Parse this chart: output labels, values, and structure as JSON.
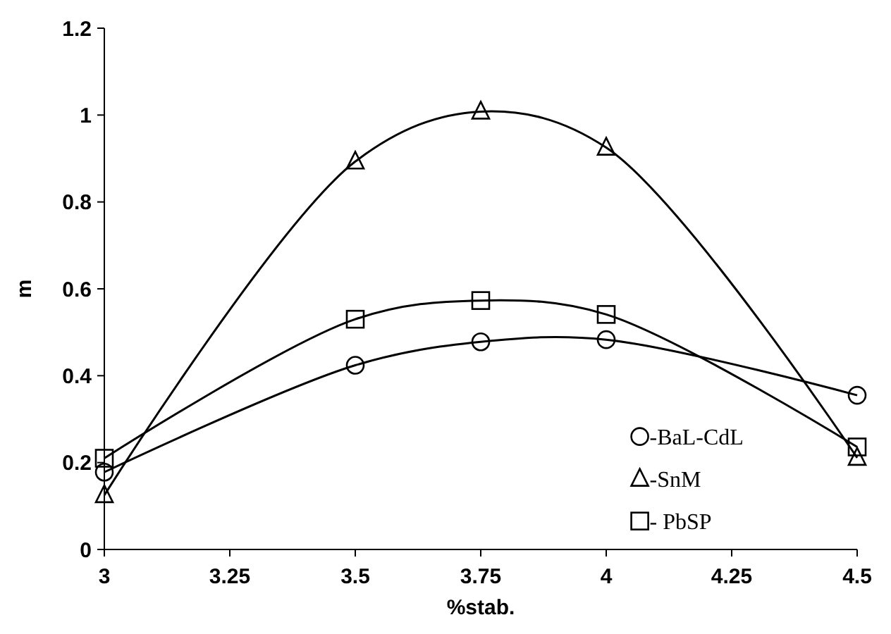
{
  "chart_data": {
    "type": "line",
    "xlabel": "%stab.",
    "ylabel": "m",
    "x": [
      3,
      3.5,
      3.75,
      4,
      4.5
    ],
    "xlim": [
      3,
      4.5
    ],
    "xticks": [
      3,
      3.25,
      3.5,
      3.75,
      4,
      4.25,
      4.5
    ],
    "ylim": [
      0,
      1.2
    ],
    "yticks": [
      0,
      0.2,
      0.4,
      0.6,
      0.8,
      1,
      1.2
    ],
    "legend": "bottom right",
    "grid": false,
    "line_style": "solid",
    "series": [
      {
        "name": "-BaL-CdL",
        "color": "#000000",
        "marker": "circle",
        "values": [
          0.178,
          0.424,
          0.478,
          0.483,
          0.355
        ]
      },
      {
        "name": "-SnM",
        "color": "#000000",
        "marker": "triangle",
        "values": [
          0.125,
          0.893,
          1.008,
          0.925,
          0.211
        ]
      },
      {
        "name": "- PbSP",
        "color": "#000000",
        "marker": "square",
        "values": [
          0.21,
          0.53,
          0.573,
          0.541,
          0.236
        ]
      }
    ]
  }
}
